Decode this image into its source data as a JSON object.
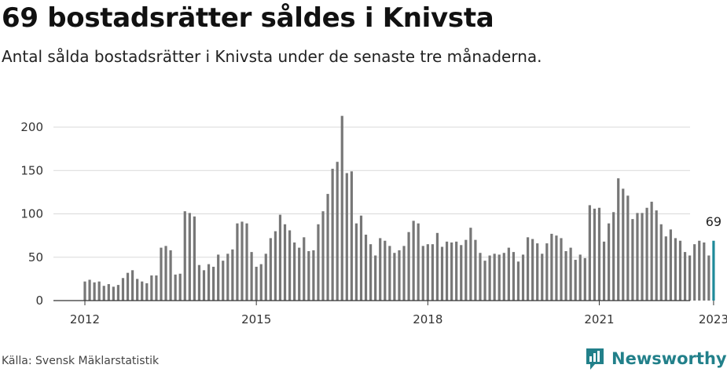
{
  "header": {
    "title": "69 bostadsrätter såldes i Knivsta",
    "subtitle": "Antal sålda bostadsrätter i Knivsta under de senaste tre månaderna."
  },
  "footer": {
    "source": "Källa: Svensk Mäklarstatistik",
    "brand": "Newsworthy"
  },
  "colors": {
    "bar": "#777777",
    "highlight": "#1f8a99",
    "grid": "#d9d9d9",
    "axis": "#333333",
    "brand": "#22808a"
  },
  "chart_data": {
    "type": "bar",
    "title": "69 bostadsrätter såldes i Knivsta",
    "subtitle": "Antal sålda bostadsrätter i Knivsta under de senaste tre månaderna.",
    "xlabel": "",
    "ylabel": "",
    "ylim": [
      0,
      200
    ],
    "yticks": [
      0,
      50,
      100,
      150,
      200
    ],
    "xtick_labels": [
      {
        "label": "2012",
        "date": "2012-01"
      },
      {
        "label": "2015",
        "date": "2015-01"
      },
      {
        "label": "2018",
        "date": "2018-01"
      },
      {
        "label": "2021",
        "date": "2021-01"
      },
      {
        "label": "2023",
        "date": "2023-01"
      }
    ],
    "start_month": "2012-01",
    "end_month": "2023-01",
    "grid": true,
    "legend": "none",
    "highlighted_label": "69",
    "x": [
      "2012-01",
      "2012-02",
      "2012-03",
      "2012-04",
      "2012-05",
      "2012-06",
      "2012-07",
      "2012-08",
      "2012-09",
      "2012-10",
      "2012-11",
      "2012-12",
      "2013-01",
      "2013-02",
      "2013-03",
      "2013-04",
      "2013-05",
      "2013-06",
      "2013-07",
      "2013-08",
      "2013-09",
      "2013-10",
      "2013-11",
      "2013-12",
      "2014-01",
      "2014-02",
      "2014-03",
      "2014-04",
      "2014-05",
      "2014-06",
      "2014-07",
      "2014-08",
      "2014-09",
      "2014-10",
      "2014-11",
      "2014-12",
      "2015-01",
      "2015-02",
      "2015-03",
      "2015-04",
      "2015-05",
      "2015-06",
      "2015-07",
      "2015-08",
      "2015-09",
      "2015-10",
      "2015-11",
      "2015-12",
      "2016-01",
      "2016-02",
      "2016-03",
      "2016-04",
      "2016-05",
      "2016-06",
      "2016-07",
      "2016-08",
      "2016-09",
      "2016-10",
      "2016-11",
      "2016-12",
      "2017-01",
      "2017-02",
      "2017-03",
      "2017-04",
      "2017-05",
      "2017-06",
      "2017-07",
      "2017-08",
      "2017-09",
      "2017-10",
      "2017-11",
      "2017-12",
      "2018-01",
      "2018-02",
      "2018-03",
      "2018-04",
      "2018-05",
      "2018-06",
      "2018-07",
      "2018-08",
      "2018-09",
      "2018-10",
      "2018-11",
      "2018-12",
      "2019-01",
      "2019-02",
      "2019-03",
      "2019-04",
      "2019-05",
      "2019-06",
      "2019-07",
      "2019-08",
      "2019-09",
      "2019-10",
      "2019-11",
      "2019-12",
      "2020-01",
      "2020-02",
      "2020-03",
      "2020-04",
      "2020-05",
      "2020-06",
      "2020-07",
      "2020-08",
      "2020-09",
      "2020-10",
      "2020-11",
      "2020-12",
      "2021-01",
      "2021-02",
      "2021-03",
      "2021-04",
      "2021-05",
      "2021-06",
      "2021-07",
      "2021-08",
      "2021-09",
      "2021-10",
      "2021-11",
      "2021-12",
      "2022-01",
      "2022-02",
      "2022-03",
      "2022-04",
      "2022-05",
      "2022-06",
      "2022-07",
      "2022-08",
      "2022-09",
      "2022-10",
      "2022-11",
      "2022-12",
      "2023-01"
    ],
    "values": [
      22,
      24,
      21,
      22,
      17,
      19,
      16,
      18,
      26,
      32,
      35,
      25,
      22,
      20,
      29,
      29,
      61,
      63,
      58,
      30,
      31,
      103,
      101,
      97,
      41,
      35,
      42,
      39,
      53,
      46,
      54,
      59,
      89,
      91,
      89,
      56,
      39,
      42,
      54,
      72,
      80,
      99,
      88,
      81,
      67,
      61,
      73,
      57,
      58,
      88,
      103,
      123,
      152,
      160,
      213,
      147,
      149,
      89,
      98,
      76,
      65,
      52,
      72,
      69,
      63,
      55,
      58,
      63,
      79,
      92,
      89,
      63,
      65,
      65,
      78,
      62,
      68,
      67,
      68,
      64,
      70,
      84,
      70,
      55,
      46,
      52,
      54,
      53,
      55,
      61,
      56,
      45,
      53,
      73,
      71,
      66,
      54,
      66,
      77,
      75,
      72,
      57,
      61,
      47,
      53,
      49,
      110,
      106,
      107,
      68,
      89,
      102,
      141,
      129,
      121,
      94,
      101,
      101,
      107,
      114,
      104,
      88,
      74,
      82,
      72,
      69,
      56,
      52,
      65,
      69,
      67,
      52,
      69
    ]
  }
}
